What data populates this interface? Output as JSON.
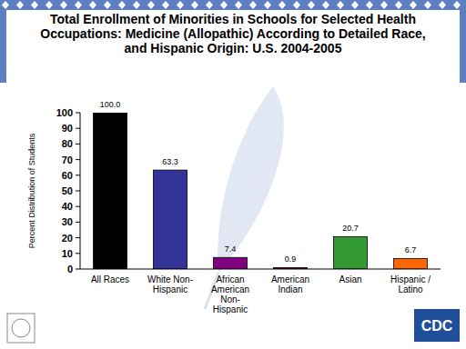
{
  "chart_data": {
    "type": "bar",
    "title": "Total Enrollment of Minorities in Schools for Selected Health Occupations: Medicine (Allopathic) According to Detailed Race, and Hispanic Origin: U.S. 2004-2005",
    "y_label": "Percent Distribution of Students",
    "categories": [
      "All Races",
      "White Non-Hispanic",
      "African American Non-Hispanic",
      "American Indian",
      "Asian",
      "Hispanic / Latino"
    ],
    "values": [
      100,
      63.3,
      7.4,
      0.9,
      20.7,
      6.7
    ],
    "value_labels": [
      "100.0",
      "63.3",
      "7.4",
      "0.9",
      "20.7",
      "6.7"
    ],
    "colors": [
      "#000000",
      "#333399",
      "#800080",
      "#990000",
      "#339933",
      "#ff6600"
    ],
    "ylim": [
      0,
      100
    ],
    "yticks": [
      0,
      10,
      20,
      30,
      40,
      50,
      60,
      70,
      80,
      90,
      100
    ],
    "grid": false,
    "data_labels": true,
    "annotations": [
      "CDC"
    ]
  }
}
